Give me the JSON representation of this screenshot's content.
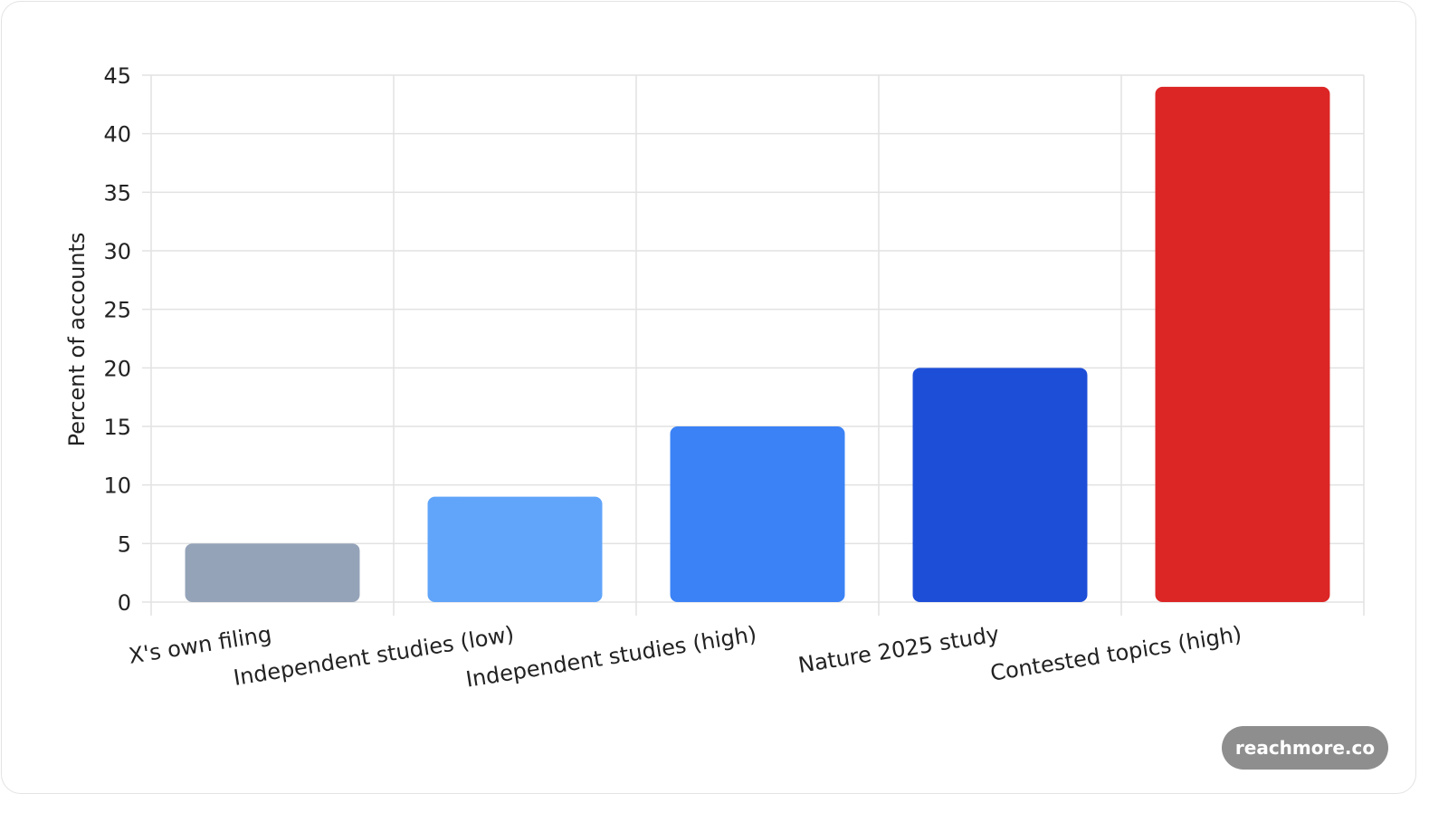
{
  "chart_data": {
    "type": "bar",
    "categories": [
      "X's own filing",
      "Independent studies (low)",
      "Independent studies (high)",
      "Nature 2025 study",
      "Contested topics (high)"
    ],
    "values": [
      5,
      9,
      15,
      20,
      44
    ],
    "colors": [
      "#94a3b8",
      "#60a5fa",
      "#3b82f6",
      "#1d4ed8",
      "#dc2626"
    ],
    "title": "",
    "xlabel": "",
    "ylabel": "Percent of accounts",
    "ylim": [
      0,
      45
    ],
    "yticks": [
      0,
      5,
      10,
      15,
      20,
      25,
      30,
      35,
      40,
      45
    ],
    "grid": true,
    "legend": "none"
  },
  "watermark": "reachmore.co"
}
